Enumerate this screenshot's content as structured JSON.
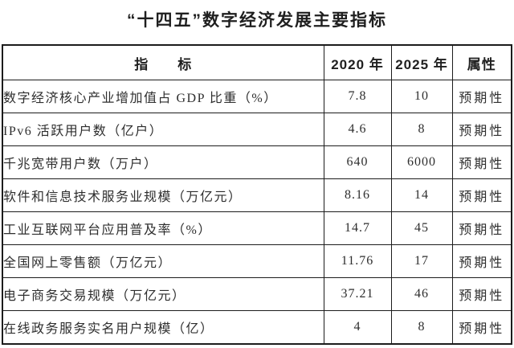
{
  "title": "“十四五”数字经济发展主要指标",
  "table": {
    "headers": {
      "indicator": "指　　标",
      "y2020": "2020 年",
      "y2025": "2025 年",
      "attribute": "属性"
    },
    "rows": [
      {
        "indicator": "数字经济核心产业增加值占 GDP 比重（%）",
        "y2020": "7.8",
        "y2025": "10",
        "attribute": "预期性"
      },
      {
        "indicator": "IPv6 活跃用户数（亿户）",
        "y2020": "4.6",
        "y2025": "8",
        "attribute": "预期性"
      },
      {
        "indicator": "千兆宽带用户数（万户）",
        "y2020": "640",
        "y2025": "6000",
        "attribute": "预期性"
      },
      {
        "indicator": "软件和信息技术服务业规模（万亿元）",
        "y2020": "8.16",
        "y2025": "14",
        "attribute": "预期性"
      },
      {
        "indicator": "工业互联网平台应用普及率（%）",
        "y2020": "14.7",
        "y2025": "45",
        "attribute": "预期性"
      },
      {
        "indicator": "全国网上零售额（万亿元）",
        "y2020": "11.76",
        "y2025": "17",
        "attribute": "预期性"
      },
      {
        "indicator": "电子商务交易规模（万亿元）",
        "y2020": "37.21",
        "y2025": "46",
        "attribute": "预期性"
      },
      {
        "indicator": "在线政务服务实名用户规模（亿）",
        "y2020": "4",
        "y2025": "8",
        "attribute": "预期性"
      }
    ]
  }
}
